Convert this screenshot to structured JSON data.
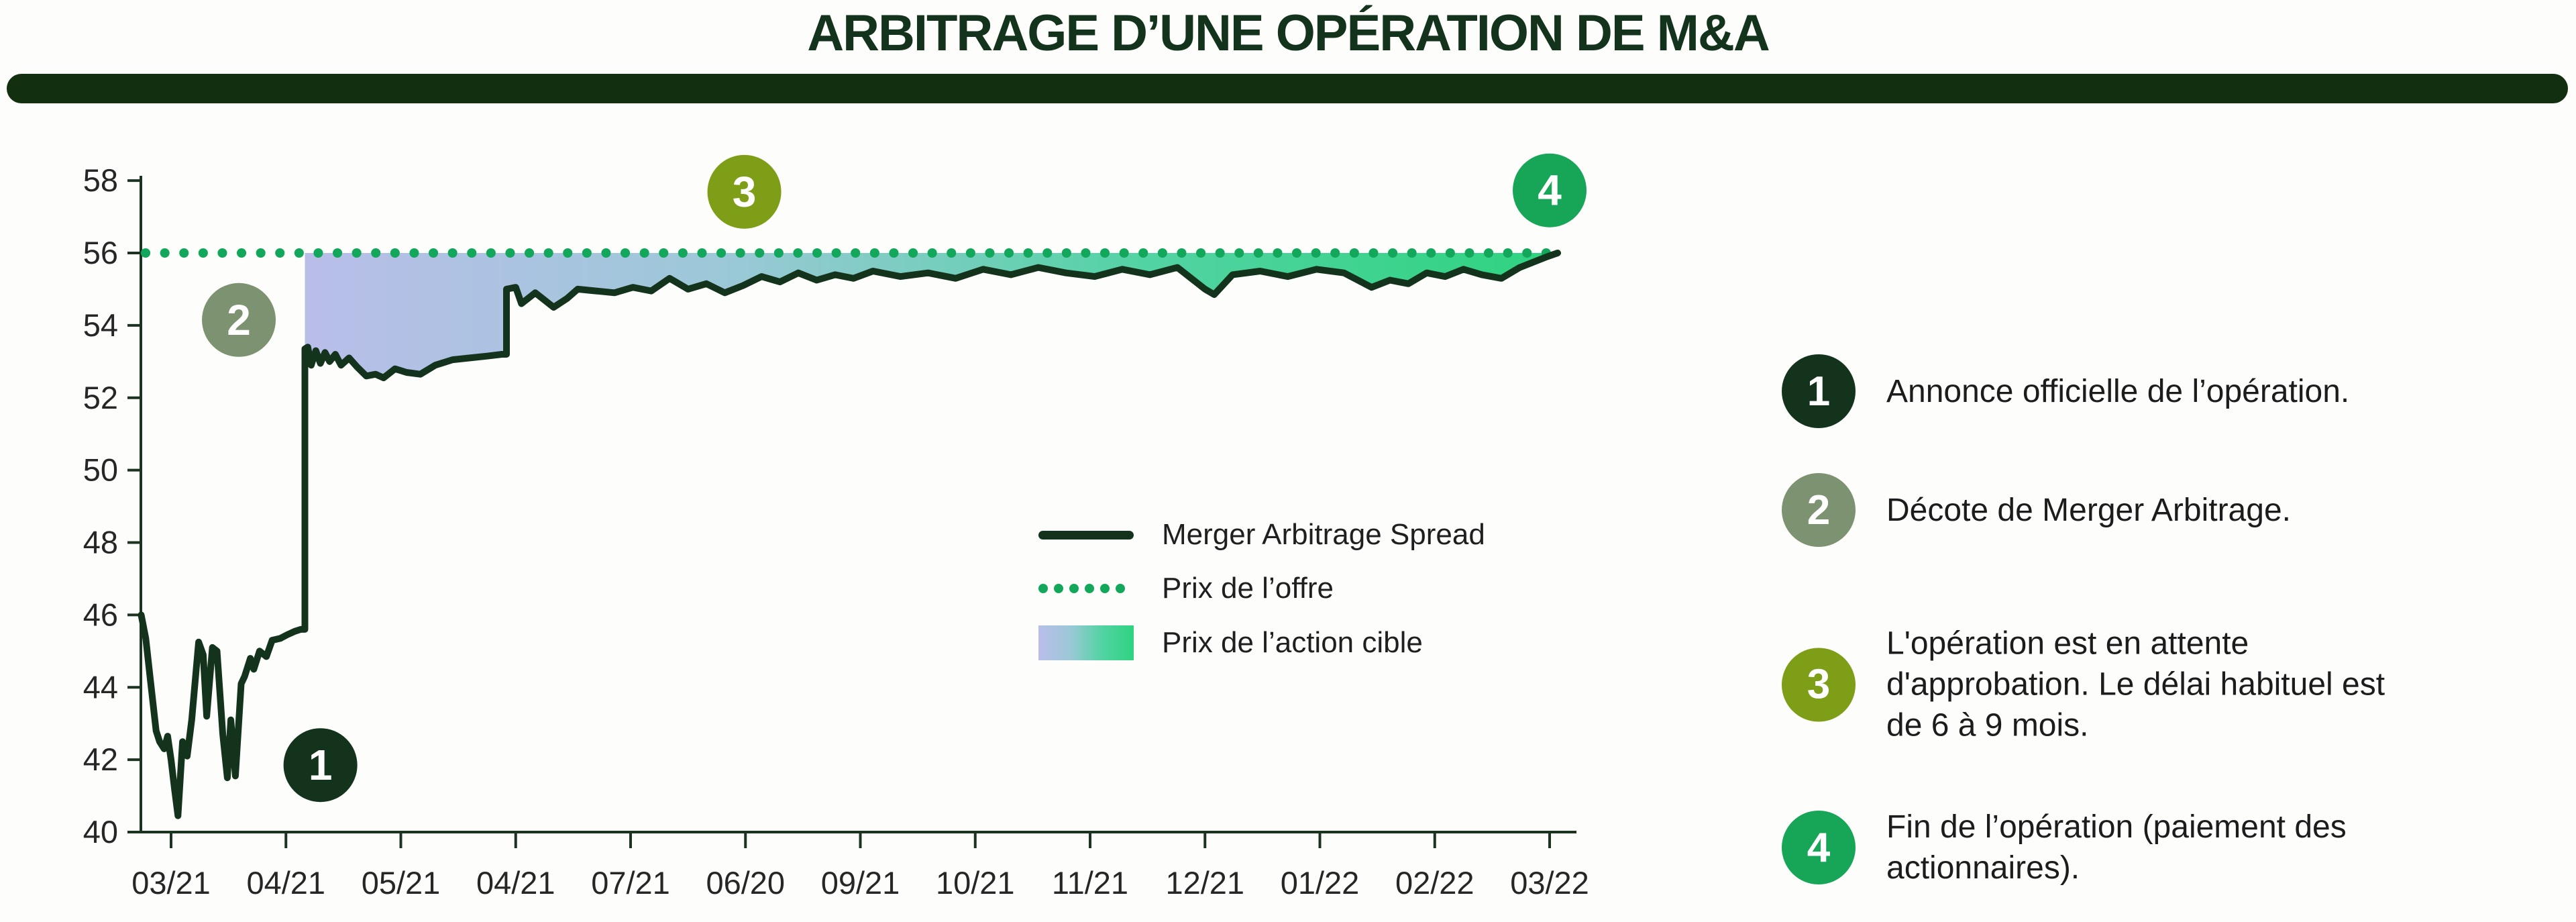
{
  "page": {
    "title": "ARBITRAGE D’UNE OPÉRATION DE M&A"
  },
  "chart_data": {
    "type": "line",
    "title": "ARBITRAGE D’UNE OPÉRATION DE M&A",
    "x_tick_labels": [
      "03/21",
      "04/21",
      "05/21",
      "04/21",
      "07/21",
      "06/20",
      "09/21",
      "10/21",
      "11/21",
      "12/21",
      "01/22",
      "02/22",
      "03/22"
    ],
    "yticks": [
      40,
      42,
      44,
      46,
      48,
      50,
      52,
      54,
      56,
      58
    ],
    "ylim": [
      40,
      58
    ],
    "grid": false,
    "offer_price": 56,
    "legend_position": "inside-right-middle",
    "axis_color": "#1d3322",
    "tick_label_color": "#262626",
    "series": [
      {
        "name": "Merger Arbitrage Spread",
        "type": "line",
        "color": "#14331c",
        "points": [
          [
            -0.26,
            46.0
          ],
          [
            -0.22,
            45.35
          ],
          [
            -0.18,
            44.2
          ],
          [
            -0.13,
            42.8
          ],
          [
            -0.1,
            42.5
          ],
          [
            -0.06,
            42.3
          ],
          [
            -0.03,
            42.65
          ],
          [
            0.0,
            42.0
          ],
          [
            0.03,
            41.2
          ],
          [
            0.06,
            40.45
          ],
          [
            0.1,
            42.5
          ],
          [
            0.14,
            42.1
          ],
          [
            0.18,
            43.1
          ],
          [
            0.24,
            45.25
          ],
          [
            0.28,
            44.9
          ],
          [
            0.31,
            43.2
          ],
          [
            0.36,
            45.1
          ],
          [
            0.4,
            45.0
          ],
          [
            0.45,
            42.7
          ],
          [
            0.49,
            41.5
          ],
          [
            0.52,
            43.1
          ],
          [
            0.56,
            41.55
          ],
          [
            0.61,
            44.1
          ],
          [
            0.64,
            44.3
          ],
          [
            0.69,
            44.8
          ],
          [
            0.72,
            44.5
          ],
          [
            0.77,
            45.0
          ],
          [
            0.83,
            44.85
          ],
          [
            0.88,
            45.3
          ],
          [
            0.95,
            45.35
          ],
          [
            1.01,
            45.45
          ],
          [
            1.08,
            45.55
          ],
          [
            1.13,
            45.6
          ],
          [
            1.165,
            45.6
          ],
          [
            1.165,
            53.35
          ],
          [
            1.19,
            53.4
          ],
          [
            1.22,
            52.9
          ],
          [
            1.26,
            53.3
          ],
          [
            1.3,
            52.95
          ],
          [
            1.34,
            53.25
          ],
          [
            1.38,
            53.0
          ],
          [
            1.43,
            53.2
          ],
          [
            1.48,
            52.9
          ],
          [
            1.55,
            53.1
          ],
          [
            1.62,
            52.85
          ],
          [
            1.7,
            52.6
          ],
          [
            1.78,
            52.65
          ],
          [
            1.85,
            52.55
          ],
          [
            1.95,
            52.8
          ],
          [
            2.05,
            52.7
          ],
          [
            2.17,
            52.65
          ],
          [
            2.3,
            52.9
          ],
          [
            2.45,
            53.05
          ],
          [
            2.6,
            53.1
          ],
          [
            2.75,
            53.15
          ],
          [
            2.88,
            53.2
          ],
          [
            2.92,
            53.2
          ],
          [
            2.92,
            55.0
          ],
          [
            3.0,
            55.05
          ],
          [
            3.05,
            54.6
          ],
          [
            3.17,
            54.9
          ],
          [
            3.33,
            54.5
          ],
          [
            3.45,
            54.75
          ],
          [
            3.54,
            55.0
          ],
          [
            3.7,
            54.95
          ],
          [
            3.86,
            54.9
          ],
          [
            4.02,
            55.05
          ],
          [
            4.18,
            54.95
          ],
          [
            4.34,
            55.3
          ],
          [
            4.5,
            55.0
          ],
          [
            4.66,
            55.15
          ],
          [
            4.82,
            54.9
          ],
          [
            4.98,
            55.1
          ],
          [
            5.14,
            55.35
          ],
          [
            5.3,
            55.2
          ],
          [
            5.46,
            55.45
          ],
          [
            5.62,
            55.25
          ],
          [
            5.78,
            55.4
          ],
          [
            5.94,
            55.3
          ],
          [
            6.11,
            55.5
          ],
          [
            6.35,
            55.35
          ],
          [
            6.59,
            55.45
          ],
          [
            6.83,
            55.3
          ],
          [
            7.07,
            55.55
          ],
          [
            7.31,
            55.4
          ],
          [
            7.55,
            55.6
          ],
          [
            7.79,
            55.45
          ],
          [
            8.04,
            55.35
          ],
          [
            8.28,
            55.55
          ],
          [
            8.52,
            55.4
          ],
          [
            8.76,
            55.6
          ],
          [
            9.0,
            55.0
          ],
          [
            9.08,
            54.85
          ],
          [
            9.24,
            55.4
          ],
          [
            9.48,
            55.5
          ],
          [
            9.72,
            55.35
          ],
          [
            9.97,
            55.55
          ],
          [
            10.21,
            55.45
          ],
          [
            10.45,
            55.05
          ],
          [
            10.61,
            55.25
          ],
          [
            10.77,
            55.15
          ],
          [
            10.93,
            55.45
          ],
          [
            11.09,
            55.35
          ],
          [
            11.25,
            55.55
          ],
          [
            11.41,
            55.4
          ],
          [
            11.58,
            55.3
          ],
          [
            11.74,
            55.6
          ],
          [
            11.86,
            55.75
          ],
          [
            11.98,
            55.9
          ],
          [
            12.07,
            56.0
          ]
        ]
      },
      {
        "name": "Prix de l’offre",
        "type": "dotted_horizontal_line",
        "color": "#13a75b",
        "value": 56
      },
      {
        "name": "Prix de l’action cible",
        "type": "gradient_area_between_line_and_offer",
        "x_start": 1.165,
        "x_end": 12.07,
        "gradient": [
          "#b9bee9",
          "#9cc8d8",
          "#53d3a4",
          "#2ed37f"
        ]
      }
    ],
    "badges": [
      {
        "label": "1",
        "color": "#14331d",
        "x": 1.3,
        "y": 41.85
      },
      {
        "label": "2",
        "color": "#7c9271",
        "x": 0.59,
        "y": 54.15
      },
      {
        "label": "3",
        "color": "#7d9e16",
        "x": 4.99,
        "y": 57.69
      },
      {
        "label": "4",
        "color": "#17a657",
        "x": 12.0,
        "y": 57.73
      }
    ]
  },
  "legend": {
    "entries": [
      {
        "label": "Merger Arbitrage Spread",
        "swatch": "line",
        "color": "#14331c"
      },
      {
        "label": "Prix de l’offre",
        "swatch": "dots",
        "color": "#13a75b"
      },
      {
        "label": "Prix de l’action cible",
        "swatch": "gradient",
        "gradient": [
          "#b9bee9",
          "#9cc8d8",
          "#53d3a4",
          "#2ed37f"
        ]
      }
    ]
  },
  "annotations": [
    {
      "number": "1",
      "color": "#14331d",
      "text": "Annonce officielle de l’opération."
    },
    {
      "number": "2",
      "color": "#7c9271",
      "text": "Décote de Merger Arbitrage."
    },
    {
      "number": "3",
      "color": "#7d9e16",
      "text": "L'opération est en attente\nd'approbation. Le délai habituel est\nde 6 à 9 mois."
    },
    {
      "number": "4",
      "color": "#17a657",
      "text": "Fin de l’opération (paiement des\nactionnaires)."
    }
  ]
}
